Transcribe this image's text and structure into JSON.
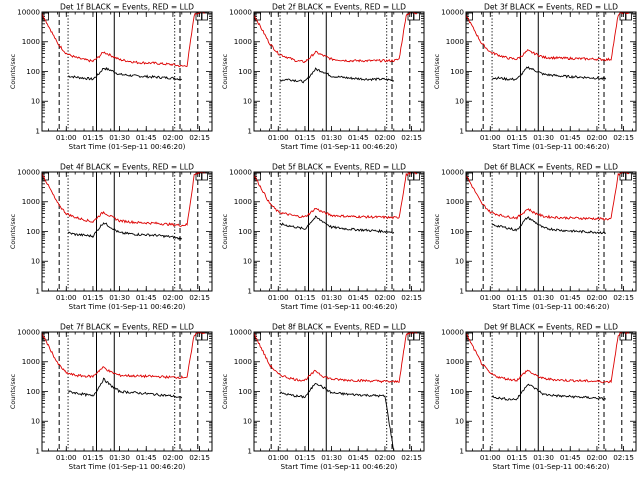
{
  "figure": {
    "xlabel": "Start Time (01-Sep-11 00:46:20)",
    "ylabel": "Counts/sec",
    "x_tick_labels": [
      "01:00",
      "01:15",
      "01:30",
      "01:45",
      "02:00",
      "02:15"
    ],
    "y_tick_labels": [
      "1",
      "10",
      "100",
      "1000",
      "10000"
    ],
    "colors": {
      "events": "#000000",
      "lld": "#dd0000",
      "axes": "#000000"
    }
  },
  "chart_data": [
    {
      "type": "line",
      "title": "Det 1f BLACK = Events, RED = LLD",
      "xlabel": "Start Time (01-Sep-11 00:46:20)",
      "ylabel": "Counts/sec",
      "yscale": "log",
      "ylim": [
        1,
        10000
      ],
      "xlim": [
        "00:46:20",
        "02:22:00"
      ],
      "series": [
        {
          "name": "Events",
          "color": "#000000",
          "x": [
            "01:01",
            "01:05",
            "01:10",
            "01:15",
            "01:18",
            "01:21",
            "01:25",
            "01:30",
            "01:40",
            "01:50",
            "02:00",
            "02:05"
          ],
          "values": [
            70,
            65,
            60,
            55,
            80,
            130,
            110,
            80,
            70,
            65,
            60,
            55
          ]
        },
        {
          "name": "LLD",
          "color": "#dd0000",
          "x": [
            "00:46:20",
            "00:55",
            "01:00",
            "01:05",
            "01:10",
            "01:15",
            "01:18",
            "01:21",
            "01:25",
            "01:30",
            "01:40",
            "01:50",
            "02:00",
            "02:05",
            "02:08",
            "02:12",
            "02:15",
            "02:18"
          ],
          "values": [
            9000,
            900,
            400,
            300,
            250,
            220,
            300,
            450,
            350,
            250,
            200,
            190,
            170,
            150,
            160,
            8000,
            10000,
            9000
          ]
        }
      ]
    },
    {
      "type": "line",
      "title": "Det 2f BLACK = Events, RED = LLD",
      "xlabel": "Start Time (01-Sep-11 00:46:20)",
      "ylabel": "Counts/sec",
      "yscale": "log",
      "ylim": [
        1,
        10000
      ],
      "xlim": [
        "00:46:20",
        "02:22:00"
      ],
      "series": [
        {
          "name": "Events",
          "color": "#000000",
          "x": [
            "01:01",
            "01:05",
            "01:10",
            "01:15",
            "01:18",
            "01:21",
            "01:25",
            "01:30",
            "01:40",
            "01:50",
            "02:00",
            "02:05"
          ],
          "values": [
            50,
            55,
            50,
            45,
            75,
            120,
            100,
            70,
            60,
            55,
            55,
            50
          ]
        },
        {
          "name": "LLD",
          "color": "#dd0000",
          "x": [
            "00:46:20",
            "00:55",
            "01:00",
            "01:05",
            "01:10",
            "01:15",
            "01:18",
            "01:21",
            "01:25",
            "01:30",
            "01:40",
            "01:50",
            "02:00",
            "02:05",
            "02:08",
            "02:12",
            "02:15",
            "02:18"
          ],
          "values": [
            8000,
            900,
            400,
            300,
            230,
            210,
            300,
            450,
            350,
            260,
            230,
            230,
            230,
            230,
            260,
            8000,
            10000,
            9000
          ]
        }
      ]
    },
    {
      "type": "line",
      "title": "Det 3f BLACK = Events, RED = LLD",
      "xlabel": "Start Time (01-Sep-11 00:46:20)",
      "ylabel": "Counts/sec",
      "yscale": "log",
      "ylim": [
        1,
        10000
      ],
      "xlim": [
        "00:46:20",
        "02:22:00"
      ],
      "series": [
        {
          "name": "Events",
          "color": "#000000",
          "x": [
            "01:01",
            "01:05",
            "01:10",
            "01:15",
            "01:18",
            "01:21",
            "01:25",
            "01:30",
            "01:40",
            "01:50",
            "02:00",
            "02:05"
          ],
          "values": [
            60,
            60,
            55,
            55,
            85,
            140,
            110,
            80,
            70,
            65,
            60,
            55
          ]
        },
        {
          "name": "LLD",
          "color": "#dd0000",
          "x": [
            "00:46:20",
            "00:55",
            "01:00",
            "01:05",
            "01:10",
            "01:15",
            "01:18",
            "01:21",
            "01:25",
            "01:30",
            "01:40",
            "01:50",
            "02:00",
            "02:05",
            "02:08",
            "02:12",
            "02:15",
            "02:18"
          ],
          "values": [
            8000,
            900,
            450,
            350,
            280,
            260,
            350,
            500,
            400,
            300,
            280,
            270,
            260,
            250,
            260,
            8000,
            10000,
            9000
          ]
        }
      ]
    },
    {
      "type": "line",
      "title": "Det 4f BLACK = Events, RED = LLD",
      "xlabel": "Start Time (01-Sep-11 00:46:20)",
      "ylabel": "Counts/sec",
      "yscale": "log",
      "ylim": [
        1,
        10000
      ],
      "xlim": [
        "00:46:20",
        "02:22:00"
      ],
      "series": [
        {
          "name": "Events",
          "color": "#000000",
          "x": [
            "01:01",
            "01:05",
            "01:10",
            "01:15",
            "01:18",
            "01:21",
            "01:25",
            "01:30",
            "01:40",
            "01:50",
            "02:00",
            "02:05"
          ],
          "values": [
            90,
            80,
            75,
            70,
            120,
            200,
            140,
            90,
            80,
            75,
            65,
            55
          ]
        },
        {
          "name": "LLD",
          "color": "#dd0000",
          "x": [
            "00:46:20",
            "00:55",
            "01:00",
            "01:05",
            "01:10",
            "01:15",
            "01:18",
            "01:21",
            "01:25",
            "01:30",
            "01:40",
            "01:50",
            "02:00",
            "02:05",
            "02:08",
            "02:12",
            "02:15",
            "02:18"
          ],
          "values": [
            9000,
            900,
            400,
            300,
            250,
            210,
            320,
            450,
            320,
            230,
            200,
            190,
            170,
            160,
            170,
            8000,
            10000,
            9000
          ]
        }
      ]
    },
    {
      "type": "line",
      "title": "Det 5f BLACK = Events, RED = LLD",
      "xlabel": "Start Time (01-Sep-11 00:46:20)",
      "ylabel": "Counts/sec",
      "yscale": "log",
      "ylim": [
        1,
        10000
      ],
      "xlim": [
        "00:46:20",
        "02:22:00"
      ],
      "series": [
        {
          "name": "Events",
          "color": "#000000",
          "x": [
            "01:01",
            "01:05",
            "01:10",
            "01:15",
            "01:18",
            "01:21",
            "01:25",
            "01:30",
            "01:40",
            "01:50",
            "02:00",
            "02:05"
          ],
          "values": [
            180,
            160,
            140,
            120,
            200,
            300,
            220,
            140,
            120,
            110,
            100,
            95
          ]
        },
        {
          "name": "LLD",
          "color": "#dd0000",
          "x": [
            "00:46:20",
            "00:55",
            "01:00",
            "01:05",
            "01:10",
            "01:15",
            "01:18",
            "01:21",
            "01:25",
            "01:30",
            "01:40",
            "01:50",
            "02:00",
            "02:05",
            "02:08",
            "02:12",
            "02:15",
            "02:18"
          ],
          "values": [
            8000,
            900,
            450,
            380,
            330,
            310,
            420,
            600,
            450,
            350,
            320,
            310,
            300,
            290,
            300,
            8000,
            10000,
            9000
          ]
        }
      ]
    },
    {
      "type": "line",
      "title": "Det 6f BLACK = Events, RED = LLD",
      "xlabel": "Start Time (01-Sep-11 00:46:20)",
      "ylabel": "Counts/sec",
      "yscale": "log",
      "ylim": [
        1,
        10000
      ],
      "xlim": [
        "00:46:20",
        "02:22:00"
      ],
      "series": [
        {
          "name": "Events",
          "color": "#000000",
          "x": [
            "01:01",
            "01:05",
            "01:10",
            "01:15",
            "01:18",
            "01:21",
            "01:25",
            "01:30",
            "01:40",
            "01:50",
            "02:00",
            "02:05"
          ],
          "values": [
            170,
            150,
            130,
            110,
            190,
            300,
            210,
            130,
            110,
            100,
            95,
            90
          ]
        },
        {
          "name": "LLD",
          "color": "#dd0000",
          "x": [
            "00:46:20",
            "00:55",
            "01:00",
            "01:05",
            "01:10",
            "01:15",
            "01:18",
            "01:21",
            "01:25",
            "01:30",
            "01:40",
            "01:50",
            "02:00",
            "02:05",
            "02:08",
            "02:12",
            "02:15",
            "02:18"
          ],
          "values": [
            8000,
            900,
            450,
            360,
            310,
            290,
            400,
            580,
            420,
            320,
            290,
            280,
            270,
            260,
            270,
            8000,
            10000,
            9000
          ]
        }
      ]
    },
    {
      "type": "line",
      "title": "Det 7f BLACK = Events, RED = LLD",
      "xlabel": "Start Time (01-Sep-11 00:46:20)",
      "ylabel": "Counts/sec",
      "yscale": "log",
      "ylim": [
        1,
        10000
      ],
      "xlim": [
        "00:46:20",
        "02:22:00"
      ],
      "series": [
        {
          "name": "Events",
          "color": "#000000",
          "x": [
            "01:01",
            "01:05",
            "01:10",
            "01:15",
            "01:18",
            "01:21",
            "01:25",
            "01:30",
            "01:40",
            "01:50",
            "02:00",
            "02:05"
          ],
          "values": [
            100,
            90,
            80,
            70,
            130,
            260,
            160,
            100,
            90,
            80,
            70,
            60
          ]
        },
        {
          "name": "LLD",
          "color": "#dd0000",
          "x": [
            "00:46:20",
            "00:55",
            "01:00",
            "01:05",
            "01:10",
            "01:15",
            "01:18",
            "01:21",
            "01:25",
            "01:30",
            "01:40",
            "01:50",
            "02:00",
            "02:05",
            "02:08",
            "02:12",
            "02:15",
            "02:18"
          ],
          "values": [
            9000,
            900,
            420,
            350,
            330,
            320,
            480,
            650,
            450,
            350,
            330,
            320,
            300,
            300,
            310,
            8000,
            10000,
            9000
          ]
        }
      ]
    },
    {
      "type": "line",
      "title": "Det 8f BLACK = Events, RED = LLD",
      "xlabel": "Start Time (01-Sep-11 00:46:20)",
      "ylabel": "Counts/sec",
      "yscale": "log",
      "ylim": [
        1,
        10000
      ],
      "xlim": [
        "00:46:20",
        "02:22:00"
      ],
      "series": [
        {
          "name": "Events",
          "color": "#000000",
          "x": [
            "01:01",
            "01:05",
            "01:10",
            "01:15",
            "01:18",
            "01:21",
            "01:25",
            "01:30",
            "01:40",
            "01:50",
            "02:00",
            "02:05"
          ],
          "values": [
            90,
            80,
            70,
            65,
            110,
            200,
            140,
            90,
            80,
            75,
            70,
            1
          ]
        },
        {
          "name": "LLD",
          "color": "#dd0000",
          "x": [
            "00:46:20",
            "00:55",
            "01:00",
            "01:05",
            "01:10",
            "01:15",
            "01:18",
            "01:21",
            "01:25",
            "01:30",
            "01:40",
            "01:50",
            "02:00",
            "02:05",
            "02:08",
            "02:12",
            "02:15",
            "02:18"
          ],
          "values": [
            9000,
            800,
            380,
            300,
            250,
            240,
            350,
            500,
            330,
            260,
            240,
            230,
            220,
            210,
            220,
            8000,
            10000,
            9000
          ]
        }
      ]
    },
    {
      "type": "line",
      "title": "Det 9f BLACK = Events, RED = LLD",
      "xlabel": "Start Time (01-Sep-11 00:46:20)",
      "ylabel": "Counts/sec",
      "yscale": "log",
      "ylim": [
        1,
        10000
      ],
      "xlim": [
        "00:46:20",
        "02:22:00"
      ],
      "series": [
        {
          "name": "Events",
          "color": "#000000",
          "x": [
            "01:01",
            "01:05",
            "01:10",
            "01:15",
            "01:18",
            "01:21",
            "01:25",
            "01:30",
            "01:40",
            "01:50",
            "02:00",
            "02:05"
          ],
          "values": [
            70,
            60,
            55,
            55,
            100,
            180,
            130,
            80,
            70,
            65,
            60,
            55
          ]
        },
        {
          "name": "LLD",
          "color": "#dd0000",
          "x": [
            "00:46:20",
            "00:55",
            "01:00",
            "01:05",
            "01:10",
            "01:15",
            "01:18",
            "01:21",
            "01:25",
            "01:30",
            "01:40",
            "01:50",
            "02:00",
            "02:05",
            "02:08",
            "02:12",
            "02:15",
            "02:18"
          ],
          "values": [
            9000,
            900,
            400,
            300,
            260,
            240,
            360,
            520,
            360,
            270,
            240,
            230,
            220,
            210,
            220,
            8000,
            10000,
            9000
          ]
        }
      ]
    }
  ]
}
